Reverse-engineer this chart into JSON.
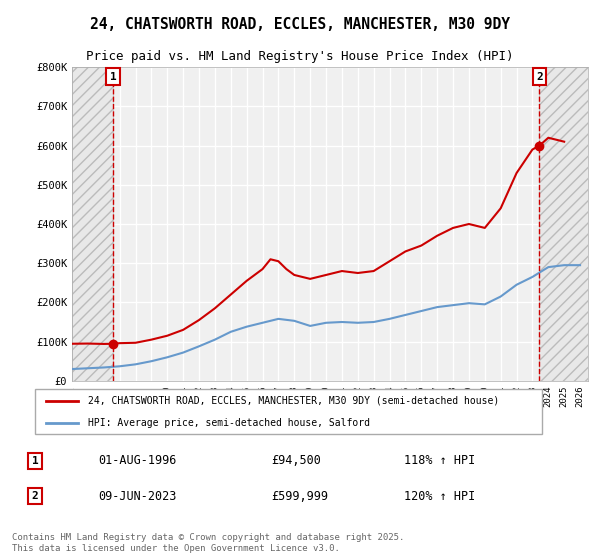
{
  "title": "24, CHATSWORTH ROAD, ECCLES, MANCHESTER, M30 9DY",
  "subtitle": "Price paid vs. HM Land Registry's House Price Index (HPI)",
  "xlabel": "",
  "ylabel": "",
  "ylim": [
    0,
    800000
  ],
  "yticks": [
    0,
    100000,
    200000,
    300000,
    400000,
    500000,
    600000,
    700000,
    800000
  ],
  "ytick_labels": [
    "£0",
    "£100K",
    "£200K",
    "£300K",
    "£400K",
    "£500K",
    "£600K",
    "£700K",
    "£800K"
  ],
  "xmin": 1994.0,
  "xmax": 2026.5,
  "background_color": "#ffffff",
  "plot_bg_color": "#f0f0f0",
  "grid_color": "#ffffff",
  "hatch_color": "#d0d0d0",
  "legend_label_red": "24, CHATSWORTH ROAD, ECCLES, MANCHESTER, M30 9DY (semi-detached house)",
  "legend_label_blue": "HPI: Average price, semi-detached house, Salford",
  "sale1_x": 1996.58,
  "sale1_y": 94500,
  "sale1_label": "1",
  "sale1_date": "01-AUG-1996",
  "sale1_price": "£94,500",
  "sale1_hpi": "118% ↑ HPI",
  "sale2_x": 2023.44,
  "sale2_y": 599999,
  "sale2_label": "2",
  "sale2_date": "09-JUN-2023",
  "sale2_price": "£599,999",
  "sale2_hpi": "120% ↑ HPI",
  "red_color": "#cc0000",
  "blue_color": "#6699cc",
  "footer": "Contains HM Land Registry data © Crown copyright and database right 2025.\nThis data is licensed under the Open Government Licence v3.0.",
  "hatch_left_end": 1996.58,
  "hatch_right_start": 2023.44,
  "red_line_data_x": [
    1994.0,
    1995.0,
    1996.0,
    1996.58,
    1997.0,
    1998.0,
    1999.0,
    2000.0,
    2001.0,
    2002.0,
    2003.0,
    2004.0,
    2005.0,
    2006.0,
    2006.5,
    2007.0,
    2007.5,
    2008.0,
    2009.0,
    2010.0,
    2011.0,
    2012.0,
    2013.0,
    2014.0,
    2015.0,
    2016.0,
    2017.0,
    2018.0,
    2019.0,
    2020.0,
    2021.0,
    2022.0,
    2023.0,
    2023.44,
    2024.0,
    2025.0
  ],
  "red_line_data_y": [
    94500,
    95000,
    94000,
    94500,
    96000,
    97000,
    105000,
    115000,
    130000,
    155000,
    185000,
    220000,
    255000,
    285000,
    310000,
    305000,
    285000,
    270000,
    260000,
    270000,
    280000,
    275000,
    280000,
    305000,
    330000,
    345000,
    370000,
    390000,
    400000,
    390000,
    440000,
    530000,
    590000,
    599999,
    620000,
    610000
  ],
  "blue_line_data_x": [
    1994.0,
    1995.0,
    1996.0,
    1997.0,
    1998.0,
    1999.0,
    2000.0,
    2001.0,
    2002.0,
    2003.0,
    2004.0,
    2005.0,
    2006.0,
    2007.0,
    2008.0,
    2009.0,
    2010.0,
    2011.0,
    2012.0,
    2013.0,
    2014.0,
    2015.0,
    2016.0,
    2017.0,
    2018.0,
    2019.0,
    2020.0,
    2021.0,
    2022.0,
    2023.0,
    2024.0,
    2025.0,
    2026.0
  ],
  "blue_line_data_y": [
    30000,
    32000,
    34000,
    37000,
    42000,
    50000,
    60000,
    72000,
    88000,
    105000,
    125000,
    138000,
    148000,
    158000,
    153000,
    140000,
    148000,
    150000,
    148000,
    150000,
    158000,
    168000,
    178000,
    188000,
    193000,
    198000,
    195000,
    215000,
    245000,
    265000,
    290000,
    295000,
    295000
  ]
}
